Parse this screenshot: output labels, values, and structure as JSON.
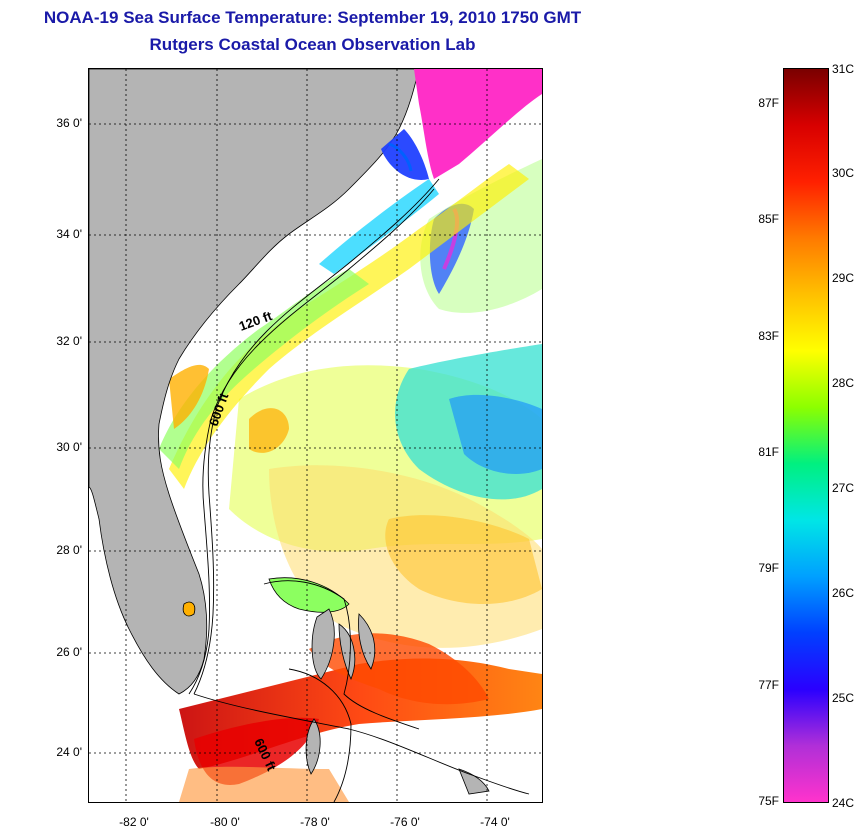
{
  "header": {
    "title": "NOAA-19 Sea Surface Temperature:  September 19, 2010 1750 GMT",
    "subtitle": "Rutgers Coastal Ocean Observation Lab"
  },
  "map": {
    "lat_ticks": [
      "36 0'",
      "34 0'",
      "32 0'",
      "30 0'",
      "28 0'",
      "26 0'",
      "24 0'"
    ],
    "lon_ticks": [
      "-82 0'",
      "-80 0'",
      "-78 0'",
      "-76 0'",
      "-74 0'"
    ],
    "contour_labels": [
      "120 ft",
      "600 ft",
      "600 ft"
    ],
    "colors": {
      "land": "#b4b4b4",
      "cloud_mask": "#ffffff",
      "coastline": "#000000",
      "gridline": "#000000"
    }
  },
  "colorbar": {
    "celsius_labels": [
      "31C",
      "30C",
      "29C",
      "28C",
      "27C",
      "26C",
      "25C",
      "24C"
    ],
    "fahrenheit_labels": [
      "87F",
      "85F",
      "83F",
      "81F",
      "79F",
      "77F",
      "75F"
    ],
    "range_c": [
      24,
      31
    ],
    "range_f": [
      75,
      88
    ],
    "palette": [
      "#ff33cc",
      "#b02fd8",
      "#2a00ff",
      "#0040ff",
      "#00a0ff",
      "#00e6e6",
      "#00f080",
      "#8cff00",
      "#ffff00",
      "#ffc000",
      "#ff7a00",
      "#ff2000",
      "#d80000",
      "#7a0000"
    ]
  }
}
